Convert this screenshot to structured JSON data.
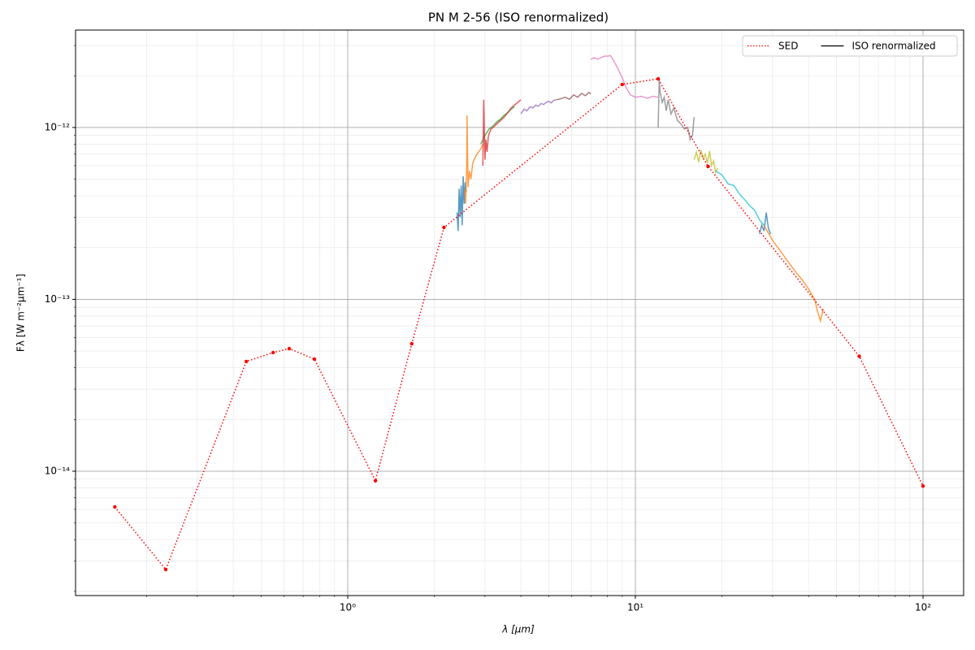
{
  "chart_data": {
    "type": "line",
    "title": "PN M 2-56 (ISO renormalized)",
    "xlabel": "λ [μm]",
    "ylabel": "Fλ [W m⁻²μm⁻¹]",
    "xscale": "log",
    "yscale": "log",
    "grid": true,
    "minor_grid": true,
    "xlim": [
      0.1132,
      138.4
    ],
    "ylim": [
      1.89e-15,
      3.69e-12
    ],
    "xticks": [
      {
        "value": 1,
        "label": "10⁰"
      },
      {
        "value": 10,
        "label": "10¹"
      },
      {
        "value": 100,
        "label": "10²"
      }
    ],
    "yticks": [
      {
        "value": 1e-14,
        "label": "10⁻¹⁴"
      },
      {
        "value": 1e-13,
        "label": "10⁻¹³"
      },
      {
        "value": 1e-12,
        "label": "10⁻¹²"
      }
    ],
    "legend": {
      "loc": "upper right",
      "entries": [
        {
          "label": "SED",
          "color": "#ff0000",
          "style": "dotted"
        },
        {
          "label": "ISO renormalized",
          "color": "#000000",
          "style": "solid"
        }
      ]
    },
    "sed": {
      "color": "#ff0000",
      "x": [
        0.155,
        0.233,
        0.444,
        0.55,
        0.626,
        0.766,
        1.248,
        1.67,
        2.16,
        9.0,
        12.0,
        17.9,
        60,
        100
      ],
      "values": [
        6.2e-15,
        2.68e-15,
        4.35e-14,
        4.9e-14,
        5.17e-14,
        4.49e-14,
        8.8e-15,
        5.52e-14,
        2.62e-13,
        1.78e-12,
        1.92e-12,
        5.93e-13,
        4.67e-14,
        8.2e-15
      ]
    },
    "segments": [
      {
        "color": "#1f77b4",
        "x": [
          2.4,
          2.42,
          2.44,
          2.46,
          2.48,
          2.5,
          2.52,
          2.54,
          2.56,
          2.58
        ],
        "values": [
          3.2e-13,
          2.5e-13,
          4.4e-13,
          3e-13,
          4.6e-13,
          2.7e-13,
          5.2e-13,
          3.6e-13,
          4.8e-13,
          4.2e-13
        ]
      },
      {
        "color": "#ff7f0e",
        "x": [
          2.55,
          2.57,
          2.59,
          2.6,
          2.62,
          2.65,
          2.68,
          2.72,
          2.76,
          2.8,
          2.85,
          2.9,
          2.95
        ],
        "values": [
          4.4e-13,
          3.6e-13,
          5.5e-13,
          1.18e-12,
          4.5e-13,
          5.6e-13,
          5e-13,
          6.2e-13,
          6.6e-13,
          6.9e-13,
          7.2e-13,
          7.5e-13,
          8e-13
        ]
      },
      {
        "color": "#2ca02c",
        "x": [
          2.9,
          3.0,
          3.1,
          3.2,
          3.3,
          3.4,
          3.5,
          3.6,
          3.7,
          3.8
        ],
        "values": [
          8e-13,
          9e-13,
          9.8e-13,
          1.02e-12,
          1.08e-12,
          1.12e-12,
          1.18e-12,
          1.22e-12,
          1.28e-12,
          1.32e-12
        ]
      },
      {
        "color": "#d62728",
        "x": [
          2.95,
          2.97,
          3.0,
          3.02,
          3.05,
          3.08,
          3.1,
          3.15,
          3.2,
          3.3,
          3.4,
          3.5,
          3.6,
          3.7,
          3.8,
          3.9,
          4.0
        ],
        "values": [
          6e-13,
          1.45e-12,
          6.5e-13,
          8.5e-13,
          7.2e-13,
          8.8e-13,
          9.2e-13,
          9.8e-13,
          1e-12,
          1.05e-12,
          1.1e-12,
          1.15e-12,
          1.22e-12,
          1.3e-12,
          1.35e-12,
          1.4e-12,
          1.45e-12
        ]
      },
      {
        "color": "#9467bd",
        "x": [
          4.0,
          4.1,
          4.2,
          4.3,
          4.4,
          4.5,
          4.6,
          4.7,
          4.8,
          4.9,
          5.0,
          5.1,
          5.2,
          5.3
        ],
        "values": [
          1.2e-12,
          1.28e-12,
          1.25e-12,
          1.32e-12,
          1.3e-12,
          1.35e-12,
          1.33e-12,
          1.38e-12,
          1.36e-12,
          1.4e-12,
          1.42e-12,
          1.39e-12,
          1.44e-12,
          1.45e-12
        ]
      },
      {
        "color": "#8c564b",
        "x": [
          5.3,
          5.5,
          5.7,
          5.9,
          6.1,
          6.3,
          6.5,
          6.7,
          6.9,
          7.0
        ],
        "values": [
          1.45e-12,
          1.47e-12,
          1.5e-12,
          1.46e-12,
          1.55e-12,
          1.5e-12,
          1.58e-12,
          1.53e-12,
          1.6e-12,
          1.57e-12
        ]
      },
      {
        "color": "#e377c2",
        "x": [
          7.0,
          7.2,
          7.4,
          7.6,
          7.8,
          8.0,
          8.2,
          8.4,
          8.7,
          9.0,
          9.3,
          9.6,
          10.0,
          10.5,
          11.0,
          11.5,
          12.0
        ],
        "values": [
          2.5e-12,
          2.55e-12,
          2.5e-12,
          2.55e-12,
          2.6e-12,
          2.6e-12,
          2.62e-12,
          2.45e-12,
          2.2e-12,
          1.95e-12,
          1.7e-12,
          1.55e-12,
          1.5e-12,
          1.52e-12,
          1.48e-12,
          1.52e-12,
          1.5e-12
        ]
      },
      {
        "color": "#7f7f7f",
        "x": [
          12.0,
          12.1,
          12.2,
          12.4,
          12.6,
          12.8,
          13.0,
          13.3,
          13.6,
          14.0,
          14.4,
          14.8,
          15.2,
          15.5,
          15.8,
          16.0
        ],
        "values": [
          1e-12,
          1.9e-12,
          1.6e-12,
          1.4e-12,
          1.5e-12,
          1.25e-12,
          1.45e-12,
          1.2e-12,
          1.3e-12,
          1.1e-12,
          1.05e-12,
          9.8e-13,
          1e-12,
          8.5e-13,
          9e-13,
          1.15e-12
        ]
      },
      {
        "color": "#bcbd22",
        "x": [
          16.0,
          16.3,
          16.6,
          16.9,
          17.2,
          17.5,
          17.8,
          18.1,
          18.4,
          18.7,
          19.0,
          19.3
        ],
        "values": [
          6.5e-13,
          7.2e-13,
          6.3e-13,
          7.4e-13,
          6.6e-13,
          7e-13,
          6.2e-13,
          7.3e-13,
          6e-13,
          6.4e-13,
          5.5e-13,
          5.8e-13
        ]
      },
      {
        "color": "#17becf",
        "x": [
          19,
          20,
          21,
          22,
          23,
          24,
          25,
          26,
          27,
          28
        ],
        "values": [
          5.6e-13,
          5.3e-13,
          4.7e-13,
          4.6e-13,
          4.1e-13,
          3.8e-13,
          3.5e-13,
          3.3e-13,
          2.9e-13,
          2.7e-13
        ]
      },
      {
        "color": "#1f77b4",
        "x": [
          27,
          27.5,
          28,
          28.5,
          29,
          29.5
        ],
        "values": [
          2.4e-13,
          2.7e-13,
          2.5e-13,
          3.2e-13,
          2.6e-13,
          2.4e-13
        ]
      },
      {
        "color": "#ff7f0e",
        "x": [
          28,
          30,
          32,
          34,
          36,
          38,
          40,
          42,
          43,
          44,
          45
        ],
        "values": [
          2.7e-13,
          2.2e-13,
          1.9e-13,
          1.65e-13,
          1.45e-13,
          1.3e-13,
          1.15e-13,
          1e-13,
          8.5e-14,
          7.5e-14,
          8.8e-14
        ]
      }
    ]
  }
}
